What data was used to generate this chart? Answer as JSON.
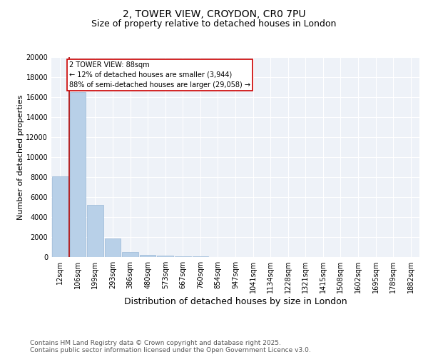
{
  "title": "2, TOWER VIEW, CROYDON, CR0 7PU",
  "subtitle": "Size of property relative to detached houses in London",
  "xlabel": "Distribution of detached houses by size in London",
  "ylabel": "Number of detached properties",
  "categories": [
    "12sqm",
    "106sqm",
    "199sqm",
    "293sqm",
    "386sqm",
    "480sqm",
    "573sqm",
    "667sqm",
    "760sqm",
    "854sqm",
    "947sqm",
    "1041sqm",
    "1134sqm",
    "1228sqm",
    "1321sqm",
    "1415sqm",
    "1508sqm",
    "1602sqm",
    "1695sqm",
    "1789sqm",
    "1882sqm"
  ],
  "values": [
    8100,
    16500,
    5200,
    1850,
    500,
    200,
    120,
    70,
    40,
    20,
    0,
    0,
    0,
    0,
    0,
    0,
    0,
    0,
    0,
    0,
    0
  ],
  "bar_color": "#b8d0e8",
  "bar_edge_color": "#9ab8d8",
  "property_line_color": "#aa0000",
  "annotation_text": "2 TOWER VIEW: 88sqm\n← 12% of detached houses are smaller (3,944)\n88% of semi-detached houses are larger (29,058) →",
  "annotation_box_color": "#ffffff",
  "annotation_box_edge": "#cc0000",
  "ylim": [
    0,
    20000
  ],
  "yticks": [
    0,
    2000,
    4000,
    6000,
    8000,
    10000,
    12000,
    14000,
    16000,
    18000,
    20000
  ],
  "background_color": "#eef2f8",
  "footer_text": "Contains HM Land Registry data © Crown copyright and database right 2025.\nContains public sector information licensed under the Open Government Licence v3.0.",
  "title_fontsize": 10,
  "subtitle_fontsize": 9,
  "axis_label_fontsize": 9,
  "tick_fontsize": 7,
  "footer_fontsize": 6.5
}
